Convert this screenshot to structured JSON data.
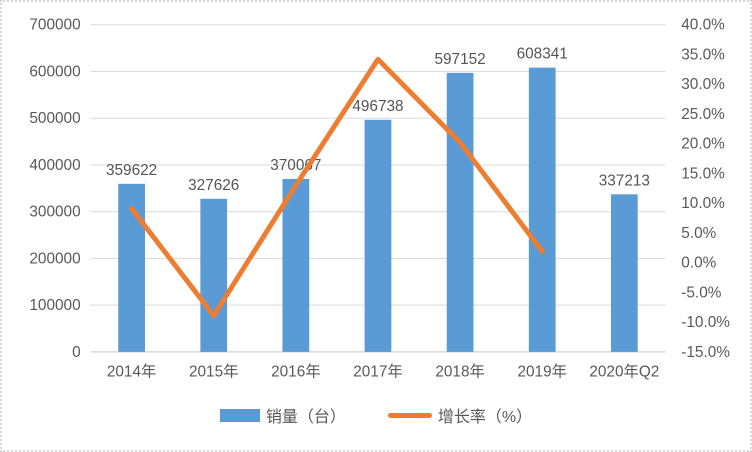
{
  "chart_data": {
    "type": "bar+line",
    "title": "",
    "categories": [
      "2014年",
      "2015年",
      "2016年",
      "2017年",
      "2018年",
      "2019年",
      "2020年Q2"
    ],
    "series": [
      {
        "name": "销量（台）",
        "type": "bar",
        "color": "#5b9bd5",
        "values": [
          359622,
          327626,
          370067,
          496738,
          597152,
          608341,
          337213
        ]
      },
      {
        "name": "增长率（%）",
        "type": "line",
        "color": "#ed7d31",
        "values": [
          9.1,
          -8.9,
          13.0,
          34.2,
          20.2,
          1.9,
          null
        ]
      }
    ],
    "left_axis": {
      "min": 0,
      "max": 700000,
      "step": 100000,
      "ticks": [
        "700000",
        "600000",
        "500000",
        "400000",
        "300000",
        "200000",
        "100000",
        "0"
      ]
    },
    "right_axis": {
      "min": -15,
      "max": 40,
      "step": 5,
      "ticks": [
        "40.0%",
        "35.0%",
        "30.0%",
        "25.0%",
        "20.0%",
        "15.0%",
        "10.0%",
        "5.0%",
        "0.0%",
        "-5.0%",
        "-10.0%",
        "-15.0%"
      ]
    },
    "grid": true,
    "data_labels": true,
    "legend_position": "bottom"
  },
  "legend": {
    "bar_label": "销量（台）",
    "line_label": "增长率（%）"
  },
  "colors": {
    "bar": "#5b9bd5",
    "line": "#ed7d31",
    "text": "#595959",
    "gridline": "#d9d9d9",
    "axis_line": "#c6c6c6",
    "background": "#ffffff",
    "border": "#d6d6d6"
  }
}
